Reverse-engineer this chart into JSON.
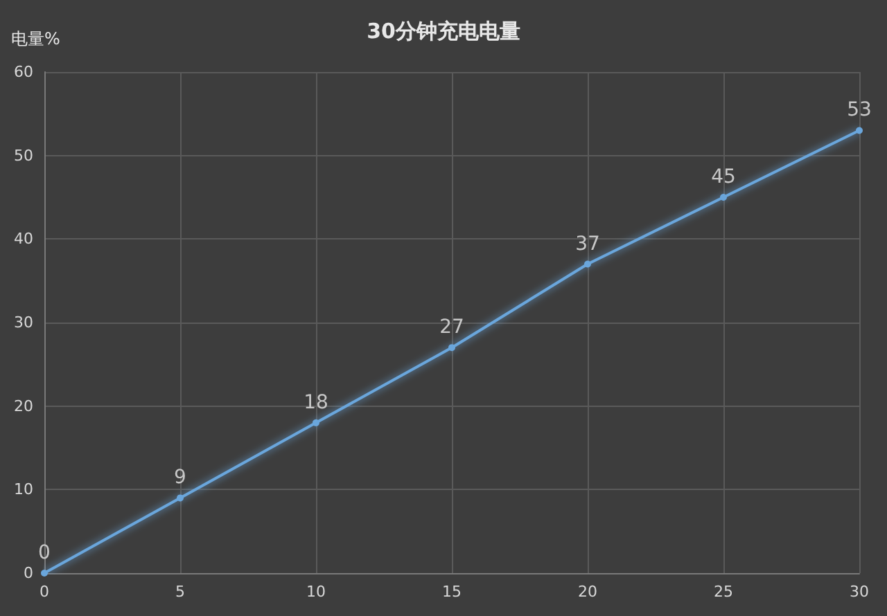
{
  "chart_data": {
    "type": "line",
    "title": "30分钟充电电量",
    "ylabel": "电量%",
    "x": [
      0,
      5,
      10,
      15,
      20,
      25,
      30
    ],
    "series": [
      {
        "color": "#6aa6dc",
        "values": [
          0,
          9,
          18,
          27,
          37,
          45,
          53
        ]
      }
    ],
    "xlim": [
      0,
      30
    ],
    "xticks": [
      0,
      5,
      10,
      15,
      20,
      25,
      30
    ],
    "ylim": [
      0,
      60
    ],
    "yticks": [
      0,
      10,
      20,
      30,
      40,
      50,
      60
    ],
    "grid": true,
    "marker": "circle",
    "line_style": "solid",
    "data_labels": true
  }
}
